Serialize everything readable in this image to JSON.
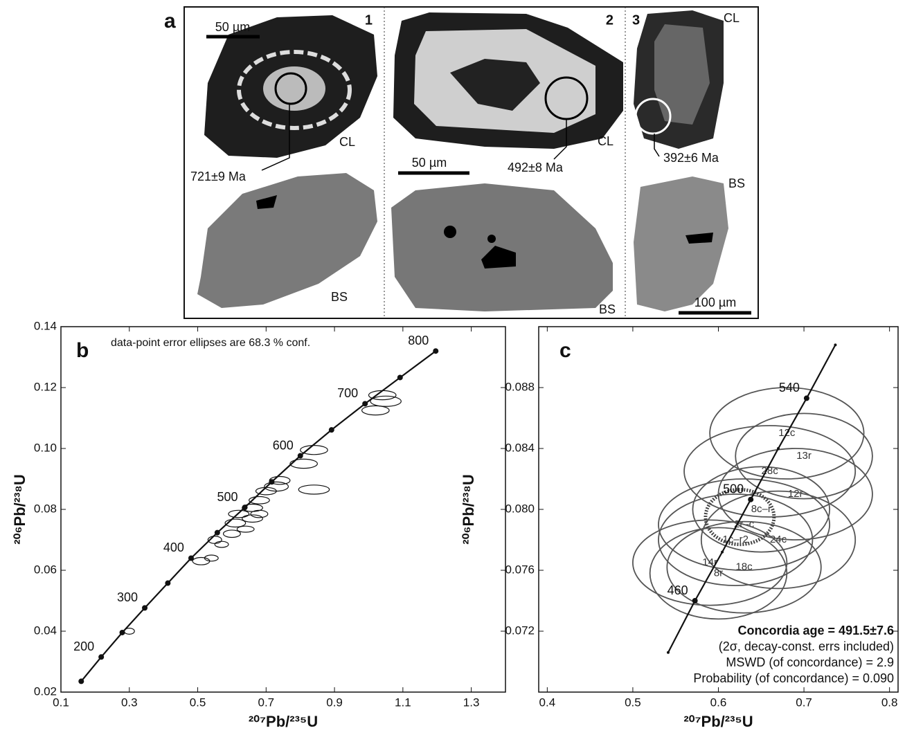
{
  "panel_a": {
    "label": "a",
    "grains": [
      {
        "number": "1",
        "scale": "50 µm",
        "cl": "CL",
        "bs": "BS",
        "age": "721±9 Ma"
      },
      {
        "number": "2",
        "scale": "50 µm",
        "cl": "CL",
        "bs": "BS",
        "age": "492±8 Ma"
      },
      {
        "number": "3",
        "scale": "100 µm",
        "cl": "CL",
        "bs": "BS",
        "age": "392±6 Ma"
      }
    ]
  },
  "chart_data": [
    {
      "type": "concordia",
      "panel": "b",
      "note": "data-point error ellipses are 68.3 % conf.",
      "xlabel": "²⁰⁷Pb/²³⁵U",
      "ylabel": "²⁰⁶Pb/²³⁸U",
      "xlim": [
        0.1,
        1.4
      ],
      "ylim": [
        0.02,
        0.14
      ],
      "xticks": [
        0.1,
        0.3,
        0.5,
        0.7,
        0.9,
        1.1,
        1.3
      ],
      "yticks": [
        0.02,
        0.04,
        0.06,
        0.08,
        {
          "value": 0.1,
          "label": "0.10"
        },
        0.12,
        0.14
      ],
      "color": "#111111",
      "concordia": {
        "x": [
          0.1593,
          0.2178,
          0.2793,
          0.3451,
          0.4126,
          0.4806,
          0.5573,
          0.6378,
          0.7164,
          0.8001,
          0.8913,
          0.9893,
          1.0918,
          1.196
        ],
        "y": [
          0.02354,
          0.03152,
          0.03955,
          0.04764,
          0.05579,
          0.06398,
          0.07236,
          0.08065,
          0.08903,
          0.09761,
          0.1061,
          0.1147,
          0.1233,
          0.132
        ],
        "ages": [
          null,
          200,
          null,
          300,
          null,
          400,
          null,
          500,
          null,
          600,
          null,
          700,
          null,
          800
        ]
      },
      "ellipses": [
        {
          "x": 0.3,
          "y": 0.04,
          "x_err": 0.015,
          "y_err": 0.001
        },
        {
          "x": 0.51,
          "y": 0.063,
          "x_err": 0.025,
          "y_err": 0.0012
        },
        {
          "x": 0.54,
          "y": 0.064,
          "x_err": 0.02,
          "y_err": 0.001
        },
        {
          "x": 0.55,
          "y": 0.07,
          "x_err": 0.02,
          "y_err": 0.0012
        },
        {
          "x": 0.57,
          "y": 0.0685,
          "x_err": 0.02,
          "y_err": 0.001
        },
        {
          "x": 0.6,
          "y": 0.072,
          "x_err": 0.025,
          "y_err": 0.0012
        },
        {
          "x": 0.61,
          "y": 0.0755,
          "x_err": 0.03,
          "y_err": 0.0013
        },
        {
          "x": 0.62,
          "y": 0.0785,
          "x_err": 0.03,
          "y_err": 0.0012
        },
        {
          "x": 0.64,
          "y": 0.0735,
          "x_err": 0.025,
          "y_err": 0.001
        },
        {
          "x": 0.66,
          "y": 0.077,
          "x_err": 0.03,
          "y_err": 0.0012
        },
        {
          "x": 0.66,
          "y": 0.0805,
          "x_err": 0.03,
          "y_err": 0.0012
        },
        {
          "x": 0.68,
          "y": 0.0785,
          "x_err": 0.025,
          "y_err": 0.0012
        },
        {
          "x": 0.68,
          "y": 0.083,
          "x_err": 0.03,
          "y_err": 0.0012
        },
        {
          "x": 0.7,
          "y": 0.086,
          "x_err": 0.03,
          "y_err": 0.0012
        },
        {
          "x": 0.73,
          "y": 0.0875,
          "x_err": 0.035,
          "y_err": 0.0015
        },
        {
          "x": 0.74,
          "y": 0.0895,
          "x_err": 0.03,
          "y_err": 0.0013
        },
        {
          "x": 0.84,
          "y": 0.0865,
          "x_err": 0.045,
          "y_err": 0.0015
        },
        {
          "x": 0.84,
          "y": 0.0995,
          "x_err": 0.04,
          "y_err": 0.0015
        },
        {
          "x": 0.81,
          "y": 0.095,
          "x_err": 0.04,
          "y_err": 0.0015
        },
        {
          "x": 1.04,
          "y": 0.1175,
          "x_err": 0.04,
          "y_err": 0.0015
        },
        {
          "x": 1.05,
          "y": 0.1155,
          "x_err": 0.045,
          "y_err": 0.0017
        },
        {
          "x": 1.02,
          "y": 0.1125,
          "x_err": 0.04,
          "y_err": 0.0015
        }
      ]
    },
    {
      "type": "concordia",
      "panel": "c",
      "xlabel": "²⁰⁷Pb/²³⁵U",
      "ylabel": "²⁰⁶Pb/²³⁸U",
      "xlim": [
        0.39,
        0.81
      ],
      "ylim": [
        0.068,
        0.092
      ],
      "xticks": [
        0.4,
        0.5,
        0.6,
        0.7,
        0.8
      ],
      "yticks": [
        0.072,
        0.076,
        {
          "value": 0.08,
          "label": "0.080"
        },
        0.084,
        0.088
      ],
      "color": "#555555",
      "concordia": {
        "x": [
          0.5413,
          0.5726,
          0.6045,
          0.6378,
          0.67,
          0.7031,
          0.7367
        ],
        "y": [
          0.0706,
          0.074,
          0.0772,
          0.08065,
          0.084,
          0.0873,
          0.0908
        ],
        "ages": [
          null,
          460,
          null,
          500,
          null,
          540,
          null
        ]
      },
      "ellipses": [
        {
          "x": 0.68,
          "y": 0.085,
          "x_err": 0.09,
          "y_err": 0.003,
          "label": "12c"
        },
        {
          "x": 0.7,
          "y": 0.0835,
          "x_err": 0.08,
          "y_err": 0.0028,
          "label": "13r"
        },
        {
          "x": 0.66,
          "y": 0.0825,
          "x_err": 0.1,
          "y_err": 0.003,
          "label": "28c"
        },
        {
          "x": 0.69,
          "y": 0.081,
          "x_err": 0.09,
          "y_err": 0.003,
          "label": "12r"
        },
        {
          "x": 0.65,
          "y": 0.08,
          "x_err": 0.08,
          "y_err": 0.0028,
          "label": "8c–r"
        },
        {
          "x": 0.63,
          "y": 0.079,
          "x_err": 0.1,
          "y_err": 0.003,
          "label": "2r–c"
        },
        {
          "x": 0.62,
          "y": 0.078,
          "x_err": 0.09,
          "y_err": 0.003,
          "label": "1c–r2"
        },
        {
          "x": 0.67,
          "y": 0.078,
          "x_err": 0.09,
          "y_err": 0.0032,
          "label": "24c"
        },
        {
          "x": 0.59,
          "y": 0.0765,
          "x_err": 0.09,
          "y_err": 0.0028,
          "label": "14r"
        },
        {
          "x": 0.6,
          "y": 0.0758,
          "x_err": 0.08,
          "y_err": 0.003,
          "label": "8r"
        },
        {
          "x": 0.63,
          "y": 0.0762,
          "x_err": 0.09,
          "y_err": 0.003,
          "label": "18c"
        }
      ],
      "mean_ellipse": {
        "x": 0.625,
        "y": 0.0795,
        "x_err": 0.04,
        "y_err": 0.0018
      },
      "annotations": [
        "Concordia age = 491.5±7.6",
        "(2σ, decay-const. errs included)",
        "MSWD (of concordance) = 2.9",
        "Probability (of concordance) = 0.090"
      ]
    }
  ]
}
